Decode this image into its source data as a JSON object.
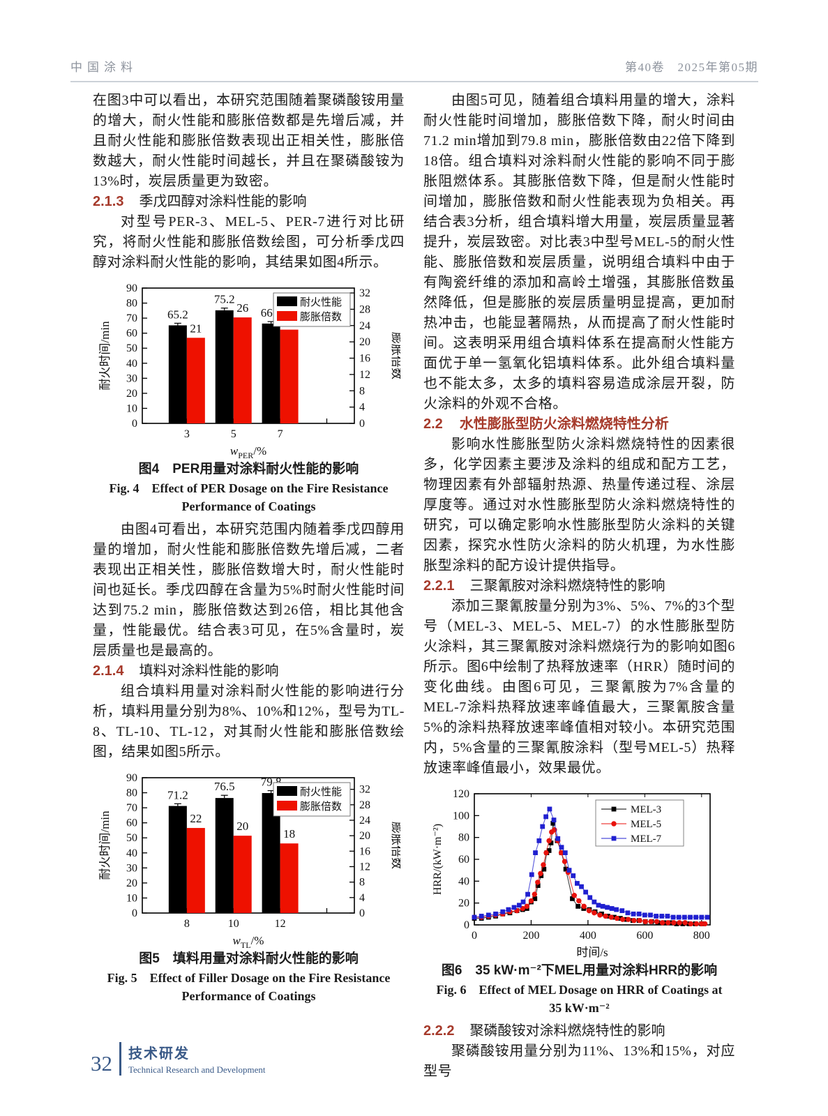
{
  "header": {
    "journal": "中国涂料",
    "issue": "第40卷　2025年第05期"
  },
  "left": {
    "p1": "在图3中可以看出，本研究范围随着聚磷酸铵用量的增大，耐火性能和膨胀倍数都是先增后减，并且耐火性能和膨胀倍数表现出正相关性，膨胀倍数越大，耐火性能时间越长，并且在聚磷酸铵为13%时，炭层质量更为致密。",
    "h213": {
      "num": "2.1.3",
      "title": "季戊四醇对涂料性能的影响"
    },
    "p2": "对型号PER-3、MEL-5、PER-7进行对比研究，将耐火性能和膨胀倍数绘图，可分析季戊四醇对涂料耐火性能的影响，其结果如图4所示。",
    "fig4": {
      "cap_zh": "图4　PER用量对涂料耐火性能的影响",
      "cap_en1": "Fig. 4　Effect of PER Dosage on the Fire Resistance",
      "cap_en2": "Performance of Coatings"
    },
    "p3": "由图4可看出，本研究范围内随着季戊四醇用量的增加，耐火性能和膨胀倍数先增后减，二者表现出正相关性，膨胀倍数增大时，耐火性能时间也延长。季戊四醇在含量为5%时耐火性能时间达到75.2 min，膨胀倍数达到26倍，相比其他含量，性能最优。结合表3可见，在5%含量时，炭层质量也是最高的。",
    "h214": {
      "num": "2.1.4",
      "title": "填料对涂料性能的影响"
    },
    "p4": "组合填料用量对涂料耐火性能的影响进行分析，填料用量分别为8%、10%和12%，型号为TL-8、TL-10、TL-12，对其耐火性能和膨胀倍数绘图，结果如图5所示。",
    "fig5": {
      "cap_zh": "图5　填料用量对涂料耐火性能的影响",
      "cap_en1": "Fig. 5　Effect of Filler Dosage on the Fire Resistance",
      "cap_en2": "Performance of Coatings"
    }
  },
  "right": {
    "p1": "由图5可见，随着组合填料用量的增大，涂料耐火性能时间增加，膨胀倍数下降，耐火时间由71.2 min增加到79.8 min，膨胀倍数由22倍下降到18倍。组合填料对涂料耐火性能的影响不同于膨胀阻燃体系。其膨胀倍数下降，但是耐火性能时间增加，膨胀倍数和耐火性能表现为负相关。再结合表3分析，组合填料增大用量，炭层质量显著提升，炭层致密。对比表3中型号MEL-5的耐火性能、膨胀倍数和炭层质量，说明组合填料中由于有陶瓷纤维的添加和高岭土增强，其膨胀倍数虽然降低，但是膨胀的炭层质量明显提高，更加耐热冲击，也能显著隔热，从而提高了耐火性能时间。这表明采用组合填料体系在提高耐火性能方面优于单一氢氧化铝填料体系。此外组合填料量也不能太多，太多的填料容易造成涂层开裂，防火涂料的外观不合格。",
    "h22": {
      "num": "2.2",
      "title": "水性膨胀型防火涂料燃烧特性分析"
    },
    "p2": "影响水性膨胀型防火涂料燃烧特性的因素很多，化学因素主要涉及涂料的组成和配方工艺，物理因素有外部辐射热源、热量传递过程、涂层厚度等。通过对水性膨胀型防火涂料燃烧特性的研究，可以确定影响水性膨胀型防火涂料的关键因素，探究水性防火涂料的防火机理，为水性膨胀型涂料的配方设计提供指导。",
    "h221": {
      "num": "2.2.1",
      "title": "三聚氰胺对涂料燃烧特性的影响"
    },
    "p3": "添加三聚氰胺量分别为3%、5%、7%的3个型号（MEL-3、MEL-5、MEL-7）的水性膨胀型防火涂料，其三聚氰胺对涂料燃烧行为的影响如图6所示。图6中绘制了热释放速率（HRR）随时间的变化曲线。由图6可见，三聚氰胺为7%含量的MEL-7涂料热释放速率峰值最大，三聚氰胺含量5%的涂料热释放速率峰值相对较小。本研究范围内，5%含量的三聚氰胺涂料（型号MEL-5）热释放速率峰值最小，效果最优。",
    "fig6": {
      "cap_zh": "图6　35 kW·m⁻²下MEL用量对涂料HRR的影响",
      "cap_en1": "Fig. 6　Effect of MEL Dosage on HRR of Coatings at",
      "cap_en2": "35 kW·m⁻²"
    },
    "h222": {
      "num": "2.2.2",
      "title": "聚磷酸铵对涂料燃烧特性的影响"
    },
    "p4": "聚磷酸铵用量分别为11%、13%和15%，对应型号"
  },
  "footer": {
    "page_number": "32",
    "section_zh": "技术研发",
    "section_en": "Technical Research and Development"
  },
  "colors": {
    "section_heading": "#a63a2b",
    "footer_blue": "#3a5a88",
    "bar_black": "#000000",
    "bar_red": "#ee1100",
    "line_red": "#e8120c",
    "line_blue": "#2020d0",
    "header_gray": "#8d939d"
  },
  "chart_data": [
    {
      "id": "fig4",
      "type": "bar",
      "title_zh": "图4　PER用量对涂料耐火性能的影响",
      "title_en": "Fig. 4 Effect of PER Dosage on the Fire Resistance Performance of Coatings",
      "categories": [
        "3",
        "5",
        "7"
      ],
      "series": [
        {
          "name": "耐火性能",
          "color": "#000000",
          "axis": "left",
          "values": [
            65.2,
            75.2,
            66.4
          ],
          "errors": [
            1.4,
            1.5,
            1.3
          ]
        },
        {
          "name": "膨胀倍数",
          "color": "#ee1100",
          "axis": "right",
          "values": [
            21,
            26,
            23
          ]
        }
      ],
      "xlabel_var": "w",
      "xlabel_sub": "PER",
      "xlabel_unit": "/%",
      "ylabel_left": "耐火时间/min",
      "ylabel_right": "膨胀倍数",
      "ylim_left": [
        0,
        90
      ],
      "ytick_step_left": 10,
      "right_ticks": [
        0,
        4,
        8,
        12,
        16,
        20,
        24,
        28,
        32
      ],
      "right_axis_scale_max": 33.2,
      "legend_position": "top-right",
      "grid": false
    },
    {
      "id": "fig5",
      "type": "bar",
      "title_zh": "图5　填料用量对涂料耐火性能的影响",
      "title_en": "Fig. 5 Effect of Filler Dosage on the Fire Resistance Performance of Coatings",
      "categories": [
        "8",
        "10",
        "12"
      ],
      "series": [
        {
          "name": "耐火性能",
          "color": "#000000",
          "axis": "left",
          "values": [
            71.2,
            76.5,
            79.8
          ],
          "errors": [
            1.5,
            1.8,
            1.6
          ]
        },
        {
          "name": "膨胀倍数",
          "color": "#ee1100",
          "axis": "right",
          "values": [
            22,
            20,
            18
          ]
        }
      ],
      "xlabel_var": "w",
      "xlabel_sub": "TL",
      "xlabel_unit": "/%",
      "ylabel_left": "耐火时间/min",
      "ylabel_right": "膨胀倍数",
      "ylim_left": [
        0,
        90
      ],
      "ytick_step_left": 10,
      "right_ticks": [
        0,
        4,
        8,
        12,
        16,
        20,
        24,
        28,
        32
      ],
      "right_axis_scale_max": 35,
      "legend_position": "top-right",
      "grid": false
    },
    {
      "id": "fig6",
      "type": "line",
      "title_zh": "图6　35 kW·m⁻²下MEL用量对涂料HRR的影响",
      "title_en": "Fig. 6 Effect of MEL Dosage on HRR of Coatings at 35 kW·m⁻²",
      "xlabel": "时间/s",
      "ylabel": "HRR/(kW·m⁻²)",
      "xlim": [
        0,
        830
      ],
      "xticks": [
        0,
        200,
        400,
        600,
        800
      ],
      "ylim": [
        0,
        120
      ],
      "yticks": [
        0,
        20,
        40,
        60,
        80,
        100,
        120
      ],
      "legend_position": "top-right",
      "grid": false,
      "series": [
        {
          "name": "MEL-3",
          "color": "#000000",
          "marker": "square",
          "points": [
            [
              0,
              6
            ],
            [
              25,
              6
            ],
            [
              50,
              7
            ],
            [
              75,
              8
            ],
            [
              100,
              10
            ],
            [
              125,
              11
            ],
            [
              150,
              13
            ],
            [
              170,
              14
            ],
            [
              185,
              15
            ],
            [
              200,
              21
            ],
            [
              213,
              24
            ],
            [
              224,
              36
            ],
            [
              235,
              45
            ],
            [
              245,
              51
            ],
            [
              255,
              66
            ],
            [
              263,
              68
            ],
            [
              270,
              75
            ],
            [
              277,
              93
            ],
            [
              292,
              77
            ],
            [
              307,
              66
            ],
            [
              322,
              51
            ],
            [
              345,
              24
            ],
            [
              365,
              17
            ],
            [
              385,
              15
            ],
            [
              405,
              14
            ],
            [
              425,
              12
            ],
            [
              448,
              10
            ],
            [
              470,
              8
            ],
            [
              492,
              7
            ],
            [
              514,
              6
            ],
            [
              536,
              5
            ],
            [
              558,
              4
            ],
            [
              580,
              4
            ],
            [
              602,
              3
            ],
            [
              624,
              3
            ],
            [
              646,
              2
            ],
            [
              668,
              2
            ],
            [
              690,
              2
            ],
            [
              712,
              1
            ],
            [
              734,
              1
            ],
            [
              756,
              1
            ],
            [
              778,
              1
            ],
            [
              800,
              1
            ]
          ]
        },
        {
          "name": "MEL-5",
          "color": "#e8120c",
          "marker": "circle",
          "points": [
            [
              0,
              7
            ],
            [
              25,
              7
            ],
            [
              50,
              8
            ],
            [
              75,
              9
            ],
            [
              100,
              10
            ],
            [
              125,
              12
            ],
            [
              150,
              13
            ],
            [
              170,
              15
            ],
            [
              185,
              17
            ],
            [
              200,
              22
            ],
            [
              212,
              28
            ],
            [
              223,
              39
            ],
            [
              233,
              47
            ],
            [
              243,
              55
            ],
            [
              253,
              66
            ],
            [
              263,
              77
            ],
            [
              272,
              85
            ],
            [
              282,
              87
            ],
            [
              294,
              77
            ],
            [
              306,
              66
            ],
            [
              318,
              58
            ],
            [
              330,
              48
            ],
            [
              352,
              27
            ],
            [
              368,
              22
            ],
            [
              386,
              17
            ],
            [
              404,
              13
            ],
            [
              422,
              11
            ],
            [
              442,
              9
            ],
            [
              462,
              8
            ],
            [
              482,
              7
            ],
            [
              502,
              6
            ],
            [
              522,
              5
            ],
            [
              542,
              5
            ],
            [
              562,
              4
            ],
            [
              582,
              4
            ],
            [
              602,
              3
            ],
            [
              622,
              3
            ],
            [
              642,
              3
            ],
            [
              662,
              2
            ],
            [
              682,
              2
            ],
            [
              702,
              2
            ],
            [
              722,
              2
            ],
            [
              742,
              2
            ],
            [
              762,
              1
            ],
            [
              782,
              1
            ],
            [
              800,
              1
            ],
            [
              812,
              1
            ]
          ]
        },
        {
          "name": "MEL-7",
          "color": "#2020d0",
          "marker": "square",
          "points": [
            [
              0,
              7
            ],
            [
              25,
              8
            ],
            [
              50,
              9
            ],
            [
              75,
              10
            ],
            [
              100,
              12
            ],
            [
              120,
              14
            ],
            [
              140,
              16
            ],
            [
              158,
              18
            ],
            [
              172,
              21
            ],
            [
              188,
              28
            ],
            [
              202,
              46
            ],
            [
              215,
              66
            ],
            [
              228,
              77
            ],
            [
              240,
              90
            ],
            [
              252,
              99
            ],
            [
              265,
              106
            ],
            [
              280,
              96
            ],
            [
              294,
              79
            ],
            [
              307,
              71
            ],
            [
              320,
              66
            ],
            [
              334,
              50
            ],
            [
              348,
              45
            ],
            [
              362,
              38
            ],
            [
              377,
              35
            ],
            [
              392,
              30
            ],
            [
              407,
              25
            ],
            [
              422,
              21
            ],
            [
              437,
              18
            ],
            [
              452,
              17
            ],
            [
              468,
              16
            ],
            [
              484,
              15
            ],
            [
              500,
              14
            ],
            [
              520,
              13
            ],
            [
              540,
              11
            ],
            [
              560,
              10
            ],
            [
              580,
              10
            ],
            [
              600,
              9
            ],
            [
              620,
              9
            ],
            [
              640,
              8
            ],
            [
              660,
              8
            ],
            [
              680,
              8
            ],
            [
              700,
              7
            ],
            [
              720,
              7
            ],
            [
              740,
              7
            ],
            [
              760,
              7
            ],
            [
              780,
              7
            ],
            [
              800,
              7
            ],
            [
              820,
              7
            ]
          ]
        }
      ]
    }
  ]
}
